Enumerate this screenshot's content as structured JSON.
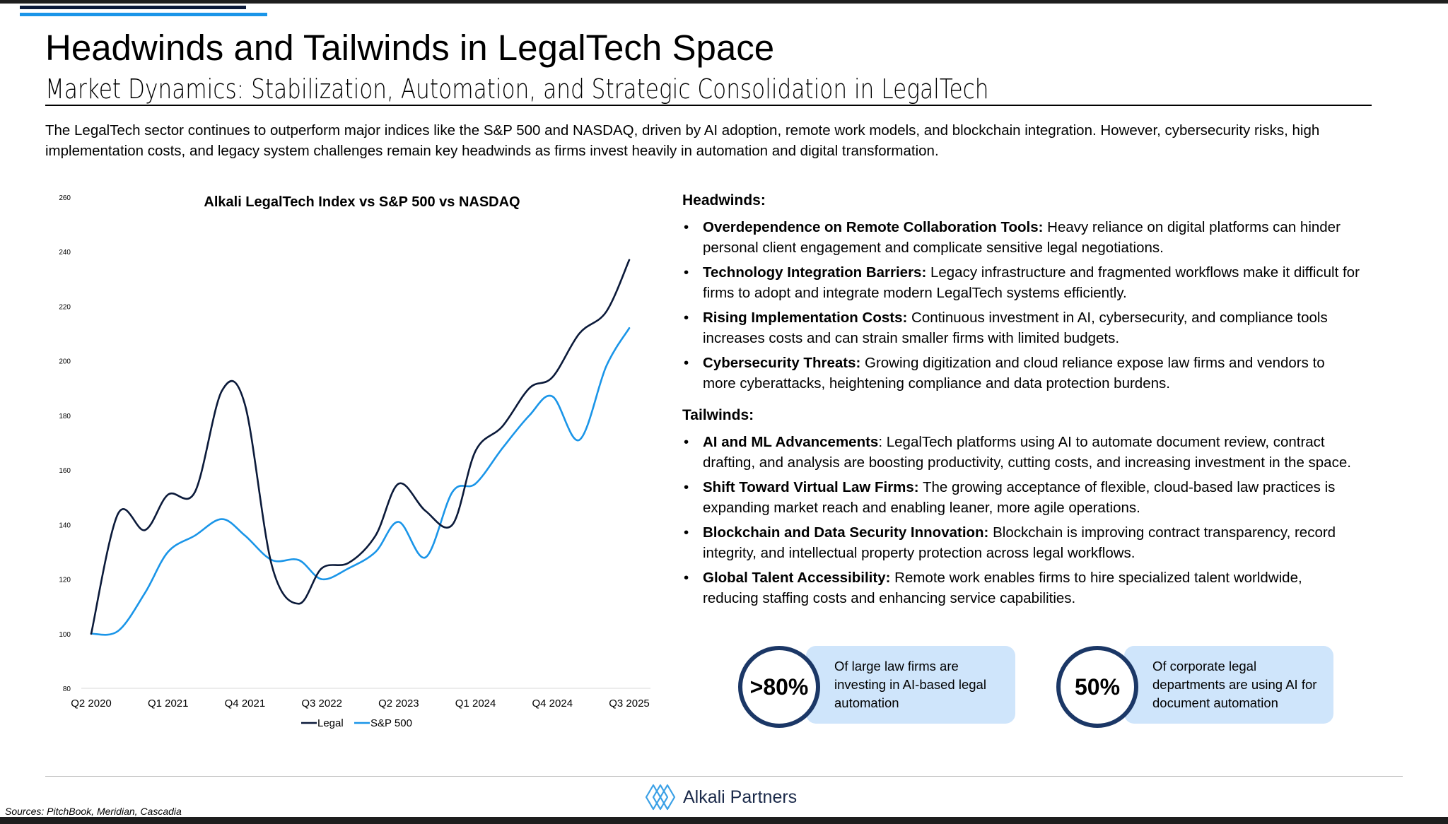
{
  "title": "Headwinds and Tailwinds in LegalTech Space",
  "subtitle": "Market Dynamics: Stabilization, Automation, and Strategic Consolidation in LegalTech",
  "intro": "The LegalTech sector continues to outperform major indices like the S&P 500 and NASDAQ, driven by AI adoption, remote work models, and blockchain integration. However, cybersecurity risks, high implementation costs, and legacy system challenges remain key headwinds as firms invest heavily in automation and digital transformation.",
  "chart_data": {
    "type": "line",
    "title": "Alkali LegalTech Index vs S&P 500 vs NASDAQ",
    "xlabel": "",
    "ylabel": "",
    "ylim": [
      80,
      260
    ],
    "yticks": [
      80,
      100,
      120,
      140,
      160,
      180,
      200,
      220,
      240,
      260
    ],
    "tick_labels": [
      "Q2 2020",
      "Q1 2021",
      "Q4 2021",
      "Q3 2022",
      "Q2 2023",
      "Q1 2024",
      "Q4 2024",
      "Q3 2025"
    ],
    "x": [
      0,
      0.35,
      0.7,
      1,
      1.35,
      1.7,
      2,
      2.35,
      2.7,
      3,
      3.35,
      3.7,
      4,
      4.35,
      4.7,
      5,
      5.35,
      5.7,
      6,
      6.35,
      6.7,
      7
    ],
    "series": [
      {
        "name": "Legal",
        "color": "#0b1a3a",
        "values": [
          100,
          144,
          138,
          151,
          152,
          189,
          184,
          125,
          111,
          124,
          126,
          136,
          155,
          145,
          140,
          167,
          176,
          190,
          194,
          210,
          218,
          237
        ]
      },
      {
        "name": "S&P 500",
        "color": "#1a95e8",
        "values": [
          100,
          101,
          115,
          130,
          136,
          142,
          136,
          127,
          127,
          120,
          124,
          130,
          141,
          128,
          152,
          155,
          168,
          180,
          187,
          171,
          198,
          212
        ]
      }
    ],
    "legend": [
      "Legal",
      "S&P 500"
    ],
    "legend_position": "bottom-center"
  },
  "headwinds": {
    "heading": "Headwinds:",
    "items": [
      {
        "bold": "Overdependence on Remote Collaboration Tools:",
        "text": " Heavy reliance on digital platforms can hinder personal client engagement and complicate sensitive legal negotiations."
      },
      {
        "bold": "Technology Integration Barriers:",
        "text": " Legacy infrastructure and fragmented workflows make it difficult for firms to adopt and integrate modern LegalTech systems efficiently."
      },
      {
        "bold": "Rising Implementation Costs:",
        "text": " Continuous investment in AI, cybersecurity, and compliance tools increases costs and can strain smaller firms with limited budgets."
      },
      {
        "bold": "Cybersecurity Threats:",
        "text": " Growing digitization and cloud reliance expose law firms and vendors to more cyberattacks, heightening compliance and data protection burdens."
      }
    ]
  },
  "tailwinds": {
    "heading": "Tailwinds:",
    "items": [
      {
        "bold": "AI and ML Advancements",
        "text": ": LegalTech platforms using AI to automate document review, contract drafting, and analysis are boosting productivity, cutting costs, and increasing investment in the space."
      },
      {
        "bold": "Shift Toward Virtual Law Firms:",
        "text": " The growing acceptance of flexible, cloud-based law practices is expanding market reach and enabling leaner, more agile operations."
      },
      {
        "bold": "Blockchain and Data Security Innovation:",
        "text": " Blockchain is improving contract transparency, record integrity, and intellectual property protection across legal workflows."
      },
      {
        "bold": "Global Talent Accessibility:",
        "text": " Remote work enables firms to hire specialized talent worldwide, reducing staffing costs and enhancing service capabilities."
      }
    ]
  },
  "stats": [
    {
      "value": ">80%",
      "text": "Of large law firms are investing in AI-based legal automation"
    },
    {
      "value": "50%",
      "text": "Of corporate legal departments are using AI for document automation"
    }
  ],
  "footer": {
    "brand": "Alkali Partners",
    "sources": "Sources: PitchBook, Meridian, Cascadia"
  },
  "colors": {
    "navy": "#0b1a3a",
    "blue": "#1a95e8",
    "stat_bg": "#cfe5fb",
    "stat_ring": "#1b3766"
  }
}
